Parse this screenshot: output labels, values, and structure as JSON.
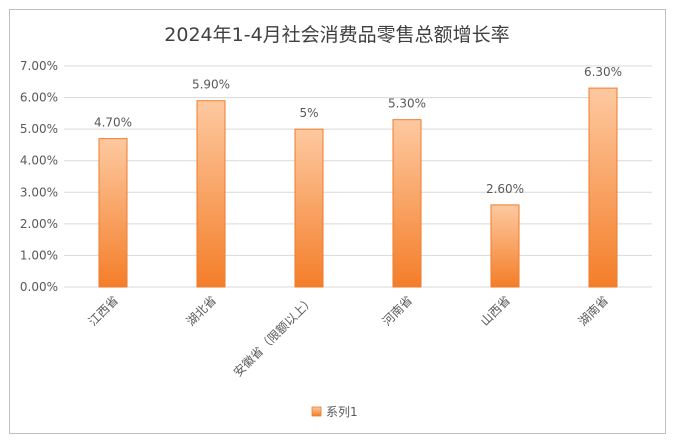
{
  "chart_data": {
    "type": "bar",
    "title": "2024年1-4月社会消费品零售总额增长率",
    "categories": [
      "江西省",
      "湖北省",
      "安徽省（限额以上）",
      "河南省",
      "山西省",
      "湖南省"
    ],
    "series": [
      {
        "name": "系列1",
        "values": [
          4.7,
          5.9,
          5.0,
          5.3,
          2.6,
          6.3
        ],
        "data_labels": [
          "4.70%",
          "5.90%",
          "5%",
          "5.30%",
          "2.60%",
          "6.30%"
        ]
      }
    ],
    "ylim": [
      0,
      7
    ],
    "y_tick_values": [
      0,
      1,
      2,
      3,
      4,
      5,
      6,
      7
    ],
    "y_tick_labels": [
      "0.00%",
      "1.00%",
      "2.00%",
      "3.00%",
      "4.00%",
      "5.00%",
      "6.00%",
      "7.00%"
    ],
    "grid": true,
    "legend_position": "bottom",
    "colors": {
      "bar_top": "#FDC9A0",
      "bar_bottom": "#F47E29",
      "bar_edge": "#F07B2C",
      "grid": "#D9D9D9",
      "border": "#BFBFBF",
      "text": "#595959",
      "title": "#404040"
    }
  }
}
